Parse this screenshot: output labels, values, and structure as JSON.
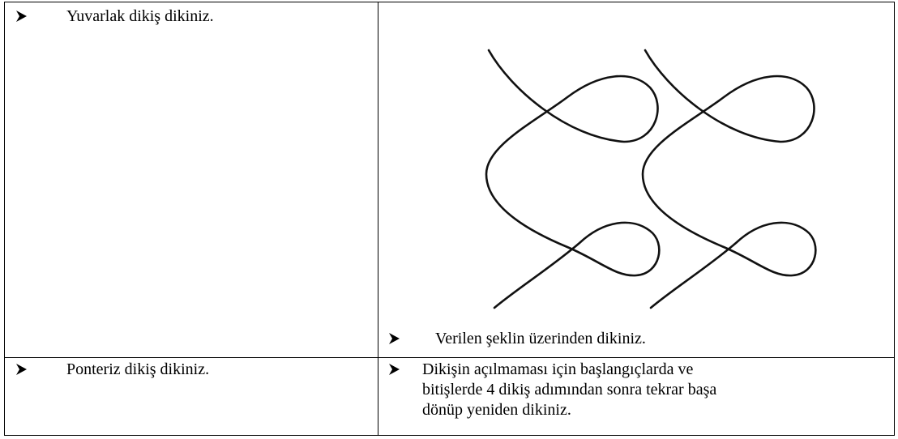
{
  "table": {
    "rows": [
      [
        "Yuvarlak dikiş dikiniz.",
        "Verilen şeklin üzerinden dikiniz."
      ],
      [
        "Ponteriz dikiş dikiniz.",
        [
          "Dikişin açılmaması için başlangıçlarda ve",
          "bitişlerde 4 dikiş adımından sonra tekrar başa",
          "dönüp yeniden dikiniz."
        ]
      ]
    ]
  }
}
